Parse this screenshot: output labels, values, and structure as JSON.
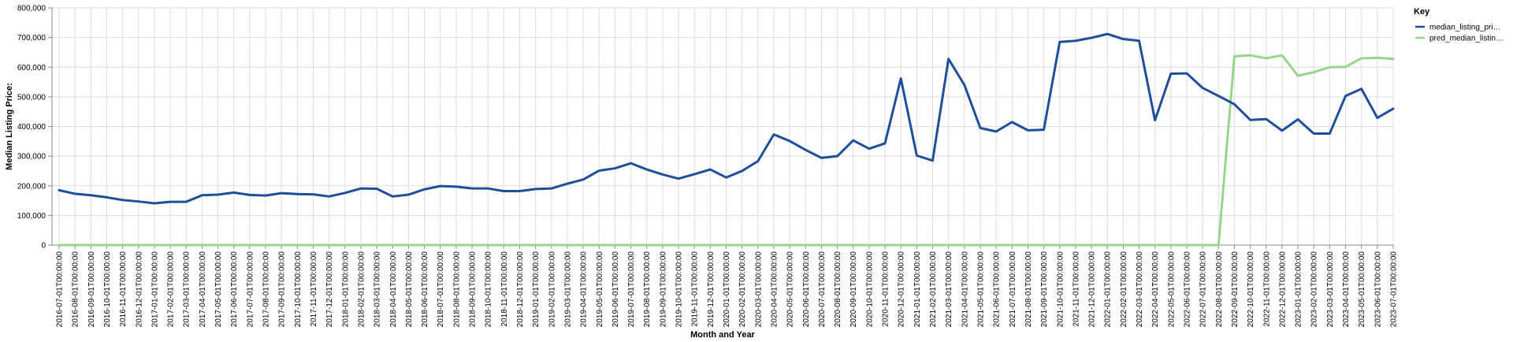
{
  "chart_data": {
    "type": "line",
    "xlabel": "Month and Year",
    "ylabel": "Median Listing Price:",
    "ylim": [
      0,
      800000
    ],
    "yticks": [
      "0",
      "100,000",
      "200,000",
      "300,000",
      "400,000",
      "500,000",
      "600,000",
      "700,000",
      "800,000"
    ],
    "grid": true,
    "legend": {
      "title": "Key",
      "placement": "top-right"
    },
    "x": [
      "2016-07-01T00:00:00",
      "2016-08-01T00:00:00",
      "2016-09-01T00:00:00",
      "2016-10-01T00:00:00",
      "2016-11-01T00:00:00",
      "2016-12-01T00:00:00",
      "2017-01-01T00:00:00",
      "2017-02-01T00:00:00",
      "2017-03-01T00:00:00",
      "2017-04-01T00:00:00",
      "2017-05-01T00:00:00",
      "2017-06-01T00:00:00",
      "2017-07-01T00:00:00",
      "2017-08-01T00:00:00",
      "2017-09-01T00:00:00",
      "2017-10-01T00:00:00",
      "2017-11-01T00:00:00",
      "2017-12-01T00:00:00",
      "2018-01-01T00:00:00",
      "2018-02-01T00:00:00",
      "2018-03-01T00:00:00",
      "2018-04-01T00:00:00",
      "2018-05-01T00:00:00",
      "2018-06-01T00:00:00",
      "2018-07-01T00:00:00",
      "2018-08-01T00:00:00",
      "2018-09-01T00:00:00",
      "2018-10-01T00:00:00",
      "2018-11-01T00:00:00",
      "2018-12-01T00:00:00",
      "2019-01-01T00:00:00",
      "2019-02-01T00:00:00",
      "2019-03-01T00:00:00",
      "2019-04-01T00:00:00",
      "2019-05-01T00:00:00",
      "2019-06-01T00:00:00",
      "2019-07-01T00:00:00",
      "2019-08-01T00:00:00",
      "2019-09-01T00:00:00",
      "2019-10-01T00:00:00",
      "2019-11-01T00:00:00",
      "2019-12-01T00:00:00",
      "2020-01-01T00:00:00",
      "2020-02-01T00:00:00",
      "2020-03-01T00:00:00",
      "2020-04-01T00:00:00",
      "2020-05-01T00:00:00",
      "2020-06-01T00:00:00",
      "2020-07-01T00:00:00",
      "2020-08-01T00:00:00",
      "2020-09-01T00:00:00",
      "2020-10-01T00:00:00",
      "2020-11-01T00:00:00",
      "2020-12-01T00:00:00",
      "2021-01-01T00:00:00",
      "2021-02-01T00:00:00",
      "2021-03-01T00:00:00",
      "2021-04-01T00:00:00",
      "2021-05-01T00:00:00",
      "2021-06-01T00:00:00",
      "2021-07-01T00:00:00",
      "2021-08-01T00:00:00",
      "2021-09-01T00:00:00",
      "2021-10-01T00:00:00",
      "2021-11-01T00:00:00",
      "2021-12-01T00:00:00",
      "2022-01-01T00:00:00",
      "2022-02-01T00:00:00",
      "2022-03-01T00:00:00",
      "2022-04-01T00:00:00",
      "2022-05-01T00:00:00",
      "2022-06-01T00:00:00",
      "2022-07-01T00:00:00",
      "2022-08-01T00:00:00",
      "2022-09-01T00:00:00",
      "2022-10-01T00:00:00",
      "2022-11-01T00:00:00",
      "2022-12-01T00:00:00",
      "2023-01-01T00:00:00",
      "2023-02-01T00:00:00",
      "2023-03-01T00:00:00",
      "2023-04-01T00:00:00",
      "2023-05-01T00:00:00",
      "2023-06-01T00:00:00",
      "2023-07-01T00:00:00"
    ],
    "series": [
      {
        "name": "median_listing_pri…",
        "color": "#1f4e9a",
        "values": [
          185000,
          173000,
          168000,
          161000,
          152000,
          147000,
          141000,
          146000,
          146000,
          168000,
          170000,
          177000,
          169000,
          167000,
          175000,
          172000,
          171000,
          164000,
          176000,
          191000,
          190000,
          164000,
          170000,
          188000,
          199000,
          197000,
          191000,
          191000,
          182000,
          182000,
          189000,
          191000,
          207000,
          221000,
          251000,
          259000,
          276000,
          255000,
          238000,
          224000,
          239000,
          255000,
          228000,
          250000,
          283000,
          373000,
          351000,
          321000,
          294000,
          300000,
          353000,
          325000,
          343000,
          562000,
          302000,
          285000,
          628000,
          540000,
          395000,
          383000,
          415000,
          387000,
          389000,
          685000,
          689000,
          699000,
          712000,
          695000,
          689000,
          421000,
          578000,
          579000,
          530000,
          503000,
          475000,
          422000,
          425000,
          386000,
          424000,
          376000,
          376000,
          503000,
          527000,
          429000,
          460000
        ]
      },
      {
        "name": "pred_median_listin…",
        "color": "#98d48b",
        "values": [
          0,
          0,
          0,
          0,
          0,
          0,
          0,
          0,
          0,
          0,
          0,
          0,
          0,
          0,
          0,
          0,
          0,
          0,
          0,
          0,
          0,
          0,
          0,
          0,
          0,
          0,
          0,
          0,
          0,
          0,
          0,
          0,
          0,
          0,
          0,
          0,
          0,
          0,
          0,
          0,
          0,
          0,
          0,
          0,
          0,
          0,
          0,
          0,
          0,
          0,
          0,
          0,
          0,
          0,
          0,
          0,
          0,
          0,
          0,
          0,
          0,
          0,
          0,
          0,
          0,
          0,
          0,
          0,
          0,
          0,
          0,
          0,
          0,
          0,
          637000,
          640000,
          630000,
          640000,
          571000,
          583000,
          600000,
          601000,
          630000,
          632000,
          628000
        ]
      }
    ]
  }
}
